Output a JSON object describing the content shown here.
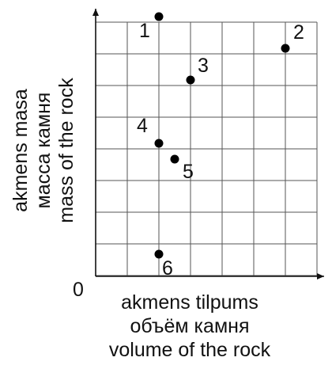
{
  "chart_data": {
    "type": "scatter",
    "origin_label": "0",
    "xlabel_lines": [
      "akmens tilpums",
      "объём камня",
      "volume of the rock"
    ],
    "ylabel_lines": [
      "akmens masa",
      "масса камня",
      "mass of the rock"
    ],
    "grid": true,
    "xlim": [
      0,
      7
    ],
    "ylim": [
      0,
      8.5
    ],
    "points": [
      {
        "label": "1",
        "x": 2,
        "y": 8.5
      },
      {
        "label": "2",
        "x": 6,
        "y": 7.5
      },
      {
        "label": "3",
        "x": 3,
        "y": 6.5
      },
      {
        "label": "4",
        "x": 2,
        "y": 4.5
      },
      {
        "label": "5",
        "x": 2.5,
        "y": 4
      },
      {
        "label": "6",
        "x": 2,
        "y": 1
      }
    ],
    "colors": {
      "point": "#000000",
      "grid": "#555555",
      "axis": "#111111"
    }
  }
}
